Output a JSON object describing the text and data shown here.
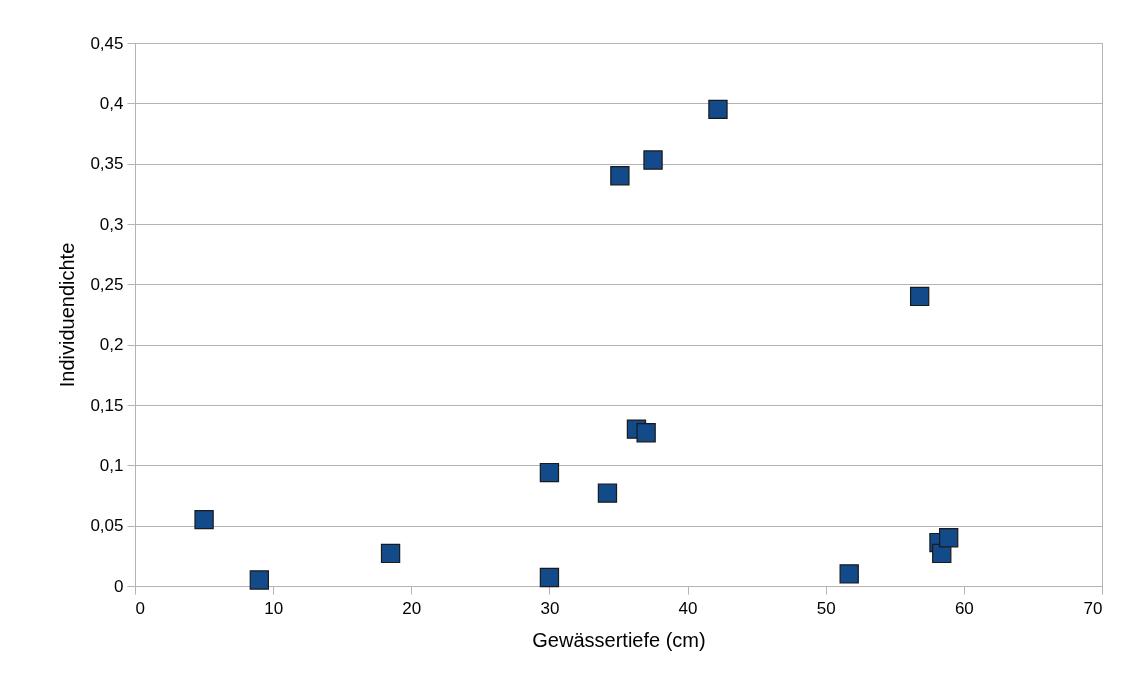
{
  "chart_data": {
    "type": "scatter",
    "xlabel": "Gewässertiefe (cm)",
    "ylabel": "Individuendichte",
    "x": [
      5.0,
      9.0,
      18.5,
      30.0,
      30.0,
      34.2,
      35.1,
      37.5,
      42.2,
      36.3,
      37.0,
      56.8,
      51.7,
      58.2,
      58.4,
      58.9
    ],
    "series": [
      {
        "color": "#124a8a",
        "values": [
          0.055,
          0.005,
          0.027,
          0.007,
          0.094,
          0.077,
          0.34,
          0.353,
          0.395,
          0.13,
          0.127,
          0.24,
          0.01,
          0.036,
          0.027,
          0.04
        ]
      }
    ],
    "xlim": [
      0,
      70
    ],
    "xticks": [
      0,
      10,
      20,
      30,
      40,
      50,
      60,
      70
    ],
    "ylim": [
      0,
      0.45
    ],
    "yticks": [
      0,
      {
        "value": 0.05,
        "label": "0,05"
      },
      {
        "value": 0.1,
        "label": "0,1"
      },
      {
        "value": 0.15,
        "label": "0,15"
      },
      {
        "value": 0.2,
        "label": "0,2"
      },
      {
        "value": 0.25,
        "label": "0,25"
      },
      {
        "value": 0.3,
        "label": "0,3"
      },
      {
        "value": 0.35,
        "label": "0,35"
      },
      {
        "value": 0.4,
        "label": "0,4"
      },
      {
        "value": 0.45,
        "label": "0,45"
      }
    ],
    "grid": "y",
    "marker": "square",
    "legend": false
  }
}
